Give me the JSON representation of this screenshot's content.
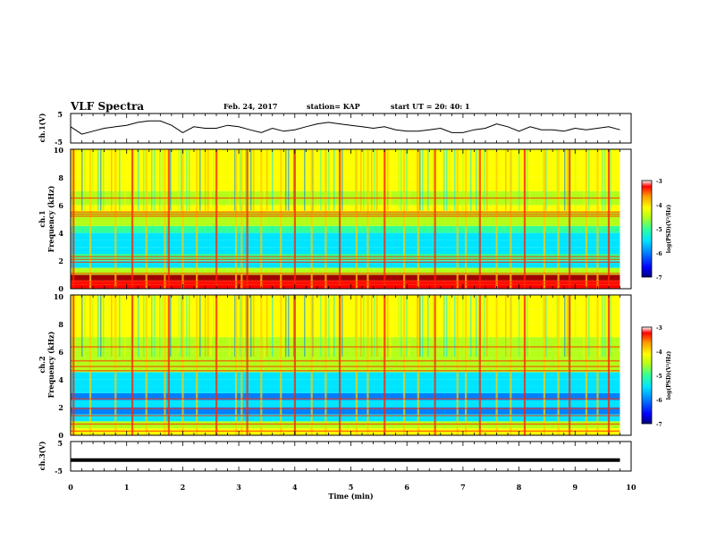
{
  "header": {
    "title": "VLF Spectra",
    "date": "Feb. 24, 2017",
    "station": "station= KAP",
    "start": "start UT =  20: 40: 1"
  },
  "colors": {
    "colormap": [
      "#00007f",
      "#0000ff",
      "#0080ff",
      "#00e5ff",
      "#33ff99",
      "#b4ff1a",
      "#ffff00",
      "#ff9900",
      "#ff0000",
      "#a00000"
    ]
  },
  "chart_data": [
    {
      "id": "ch1-waveform",
      "type": "line",
      "ylabel": "ch.1(V)",
      "ylim": [
        -5,
        5
      ],
      "yticks": [
        "5",
        "-5"
      ],
      "xlim": [
        0,
        10
      ],
      "x": [
        0,
        0.2,
        0.4,
        0.6,
        0.8,
        1.0,
        1.2,
        1.4,
        1.6,
        1.8,
        2.0,
        2.2,
        2.4,
        2.6,
        2.8,
        3.0,
        3.2,
        3.4,
        3.6,
        3.8,
        4.0,
        4.2,
        4.4,
        4.6,
        4.8,
        5.0,
        5.2,
        5.4,
        5.6,
        5.8,
        6.0,
        6.2,
        6.4,
        6.6,
        6.8,
        7.0,
        7.2,
        7.4,
        7.6,
        7.8,
        8.0,
        8.2,
        8.4,
        8.6,
        8.8,
        9.0,
        9.2,
        9.4,
        9.6,
        9.8
      ],
      "y": [
        0.5,
        -2.0,
        -1.0,
        0.0,
        0.5,
        1.0,
        2.0,
        2.5,
        2.5,
        1.0,
        -1.5,
        0.5,
        0.0,
        0.0,
        1.0,
        0.5,
        -0.5,
        -1.5,
        0.0,
        -1.0,
        -0.5,
        0.5,
        1.5,
        2.0,
        1.5,
        1.0,
        0.5,
        0.0,
        0.5,
        -0.5,
        -1.0,
        -1.0,
        -0.5,
        0.0,
        -1.5,
        -1.5,
        -0.5,
        0.0,
        1.5,
        0.5,
        -1.0,
        0.5,
        -0.5,
        -0.5,
        -1.0,
        0.0,
        -0.5,
        0.0,
        0.5,
        -0.5
      ]
    },
    {
      "id": "ch1-spectrogram",
      "type": "heatmap",
      "ylabel": "ch.1",
      "ylabel2": "Frequency (kHz)",
      "ylim": [
        0,
        10
      ],
      "yticks": [
        "0",
        "2",
        "4",
        "6",
        "8",
        "10"
      ],
      "xlim": [
        0,
        9.8
      ],
      "band_edges_khz": [
        0,
        0.6,
        1.0,
        1.5,
        2.0,
        2.5,
        3.0,
        3.5,
        4.0,
        4.5,
        5.0,
        5.5,
        6.0,
        7.0,
        8.0,
        9.0,
        10.0
      ],
      "band_levels": [
        -3.8,
        -3.4,
        -5.0,
        -5.6,
        -5.2,
        -5.4,
        -5.8,
        -5.5,
        -5.2,
        -5.0,
        -4.8,
        -4.6,
        -4.8,
        -4.6,
        -4.5,
        -4.4
      ],
      "lines_khz": [
        0.3,
        0.5,
        1.1,
        1.9,
        2.1,
        2.3,
        5.2,
        5.35,
        5.5,
        6.5
      ],
      "burst_times_min": [
        0.05,
        0.35,
        0.8,
        1.1,
        1.35,
        1.68,
        1.75,
        2.0,
        2.25,
        2.6,
        2.95,
        3.05,
        3.15,
        3.4,
        3.75,
        4.0,
        4.3,
        4.55,
        4.8,
        5.1,
        5.3,
        5.6,
        5.95,
        6.2,
        6.5,
        6.9,
        7.05,
        7.3,
        7.6,
        7.85,
        8.1,
        8.45,
        8.7,
        8.9,
        9.2,
        9.4,
        9.6
      ],
      "colorbar": {
        "label": "log(PSD)(V²/Hz)",
        "range": [
          -7,
          -3
        ],
        "ticks": [
          "-3",
          "-4",
          "-5",
          "-6",
          "-7"
        ]
      }
    },
    {
      "id": "ch2-spectrogram",
      "type": "heatmap",
      "ylabel": "ch.2",
      "ylabel2": "Frequency (kHz)",
      "ylim": [
        0,
        10
      ],
      "yticks": [
        "0",
        "2",
        "4",
        "6",
        "8",
        "10"
      ],
      "xlim": [
        0,
        9.8
      ],
      "band_edges_khz": [
        0,
        0.5,
        1.0,
        1.5,
        2.0,
        2.5,
        3.0,
        3.5,
        4.0,
        4.5,
        5.0,
        5.5,
        6.0,
        7.0,
        8.0,
        9.0,
        10.0
      ],
      "band_levels": [
        -4.6,
        -5.0,
        -5.8,
        -6.0,
        -5.6,
        -6.0,
        -5.8,
        -5.6,
        -5.4,
        -5.0,
        -4.8,
        -5.0,
        -4.8,
        -4.6,
        -4.5,
        -4.3
      ],
      "lines_khz": [
        0.3,
        0.8,
        1.4,
        1.9,
        2.6,
        4.6,
        4.9,
        5.3,
        6.3
      ],
      "burst_times_min": [
        0.05,
        0.35,
        0.8,
        1.1,
        1.35,
        1.68,
        1.75,
        2.0,
        2.25,
        2.6,
        2.95,
        3.05,
        3.15,
        3.4,
        3.75,
        4.0,
        4.3,
        4.55,
        4.8,
        5.1,
        5.3,
        5.6,
        5.95,
        6.2,
        6.5,
        6.9,
        7.05,
        7.3,
        7.6,
        7.85,
        8.1,
        8.45,
        8.7,
        8.9,
        9.2,
        9.4,
        9.6
      ],
      "colorbar": {
        "label": "log(PSD)(V²/Hz)",
        "range": [
          -7,
          -3
        ],
        "ticks": [
          "-3",
          "-4",
          "-5",
          "-6",
          "-7"
        ]
      }
    },
    {
      "id": "ch3-waveform",
      "type": "line",
      "ylabel": "ch.3(V)",
      "ylim": [
        -5,
        5
      ],
      "yticks": [
        "5",
        "-5"
      ],
      "xlim": [
        0,
        10
      ],
      "x": [
        0,
        9.8
      ],
      "y": [
        -1.3,
        -1.3
      ],
      "xlabel": "Time (min)",
      "xticks": [
        "0",
        "1",
        "2",
        "3",
        "4",
        "5",
        "6",
        "7",
        "8",
        "9",
        "10"
      ]
    }
  ]
}
